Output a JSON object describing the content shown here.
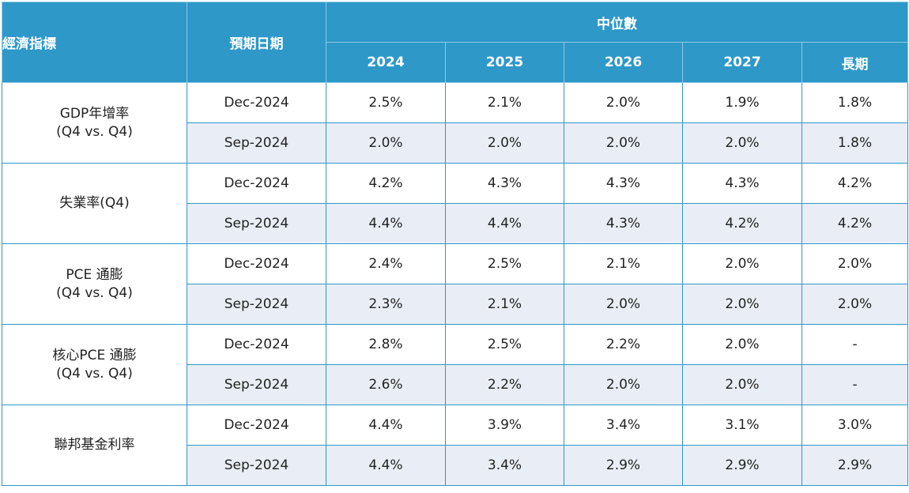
{
  "header": {
    "indicator": "經濟指標",
    "projection_date": "預期日期",
    "median": "中位數",
    "years": [
      "2024",
      "2025",
      "2026",
      "2027",
      "長期"
    ]
  },
  "rows": [
    {
      "label_lines": [
        "GDP年增率",
        "(Q4 vs. Q4)"
      ],
      "dec": {
        "date": "Dec-2024",
        "values": [
          "2.5%",
          "2.1%",
          "2.0%",
          "1.9%",
          "1.8%"
        ]
      },
      "sep": {
        "date": "Sep-2024",
        "values": [
          "2.0%",
          "2.0%",
          "2.0%",
          "2.0%",
          "1.8%"
        ]
      }
    },
    {
      "label_lines": [
        "失業率(Q4)"
      ],
      "dec": {
        "date": "Dec-2024",
        "values": [
          "4.2%",
          "4.3%",
          "4.3%",
          "4.3%",
          "4.2%"
        ]
      },
      "sep": {
        "date": "Sep-2024",
        "values": [
          "4.4%",
          "4.4%",
          "4.3%",
          "4.2%",
          "4.2%"
        ]
      }
    },
    {
      "label_lines": [
        "PCE 通膨",
        "(Q4 vs. Q4)"
      ],
      "dec": {
        "date": "Dec-2024",
        "values": [
          "2.4%",
          "2.5%",
          "2.1%",
          "2.0%",
          "2.0%"
        ]
      },
      "sep": {
        "date": "Sep-2024",
        "values": [
          "2.3%",
          "2.1%",
          "2.0%",
          "2.0%",
          "2.0%"
        ]
      }
    },
    {
      "label_lines": [
        "核心PCE 通膨",
        "(Q4 vs. Q4)"
      ],
      "dec": {
        "date": "Dec-2024",
        "values": [
          "2.8%",
          "2.5%",
          "2.2%",
          "2.0%",
          "-"
        ]
      },
      "sep": {
        "date": "Sep-2024",
        "values": [
          "2.6%",
          "2.2%",
          "2.0%",
          "2.0%",
          "-"
        ]
      }
    },
    {
      "label_lines": [
        "聯邦基金利率"
      ],
      "dec": {
        "date": "Dec-2024",
        "values": [
          "4.4%",
          "3.9%",
          "3.4%",
          "3.1%",
          "3.0%"
        ]
      },
      "sep": {
        "date": "Sep-2024",
        "values": [
          "4.4%",
          "3.4%",
          "2.9%",
          "2.9%",
          "2.9%"
        ]
      }
    }
  ],
  "colors": {
    "header_bg": "#2e98c9",
    "header_divider": "#8ccbe6",
    "alt_row_bg": "#e9edf5",
    "grid": "#2e98c9"
  }
}
